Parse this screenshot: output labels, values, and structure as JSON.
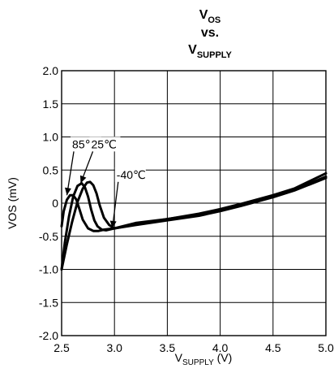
{
  "chart_data": {
    "type": "line",
    "title": {
      "line1_main": "V",
      "line1_sub": "OS",
      "line2": "vs.",
      "line3_main": "V",
      "line3_sub": "SUPPLY"
    },
    "xlabel": {
      "main": "V",
      "sub": "SUPPLY",
      "suffix": " (V)"
    },
    "ylabel": "VOS (mV)",
    "xlim": [
      2.5,
      5.0
    ],
    "ylim": [
      -2.0,
      2.0
    ],
    "x_ticks": [
      2.5,
      3.0,
      3.5,
      4.0,
      4.5,
      5.0
    ],
    "x_tick_labels": [
      "2.5",
      "3.0",
      "3.5",
      "4.0",
      "4.5",
      "5.0"
    ],
    "y_ticks": [
      -2.0,
      -1.5,
      -1.0,
      -0.5,
      0,
      0.5,
      1.0,
      1.5,
      2.0
    ],
    "y_tick_labels": [
      "-2.0",
      "-1.5",
      "-1.0",
      "-0.5",
      "0",
      "0.5",
      "1.0",
      "1.5",
      "2.0"
    ],
    "grid": true,
    "line_color": "#000000",
    "series": [
      {
        "name": "85℃",
        "x": [
          2.5,
          2.52,
          2.55,
          2.58,
          2.61,
          2.64,
          2.67,
          2.7,
          2.75,
          2.8,
          2.85,
          2.9,
          3.0,
          3.2,
          3.5,
          3.8,
          4.0,
          4.2,
          4.5,
          4.7,
          5.0
        ],
        "y": [
          -0.35,
          -0.12,
          0.05,
          0.12,
          0.12,
          0.05,
          -0.1,
          -0.25,
          -0.38,
          -0.42,
          -0.42,
          -0.4,
          -0.38,
          -0.32,
          -0.24,
          -0.16,
          -0.09,
          -0.01,
          0.12,
          0.22,
          0.45
        ]
      },
      {
        "name": "25℃",
        "x": [
          2.5,
          2.53,
          2.57,
          2.61,
          2.65,
          2.69,
          2.72,
          2.75,
          2.78,
          2.81,
          2.84,
          2.88,
          2.92,
          3.0,
          3.2,
          3.5,
          3.8,
          4.0,
          4.2,
          4.5,
          4.7,
          5.0
        ],
        "y": [
          -1.0,
          -0.6,
          -0.2,
          0.1,
          0.26,
          0.3,
          0.24,
          0.1,
          -0.1,
          -0.26,
          -0.35,
          -0.4,
          -0.41,
          -0.38,
          -0.3,
          -0.24,
          -0.17,
          -0.1,
          -0.02,
          0.11,
          0.2,
          0.4
        ]
      },
      {
        "name": "-40℃",
        "x": [
          2.5,
          2.55,
          2.6,
          2.65,
          2.7,
          2.74,
          2.77,
          2.8,
          2.83,
          2.86,
          2.9,
          2.95,
          3.0,
          3.2,
          3.5,
          3.8,
          4.0,
          4.2,
          4.5,
          4.7,
          5.0
        ],
        "y": [
          -1.0,
          -0.62,
          -0.28,
          0.02,
          0.22,
          0.31,
          0.32,
          0.27,
          0.15,
          -0.03,
          -0.22,
          -0.33,
          -0.38,
          -0.33,
          -0.26,
          -0.19,
          -0.12,
          -0.04,
          0.09,
          0.19,
          0.38
        ]
      }
    ],
    "annotations": [
      {
        "text": "85℃",
        "x": 2.6,
        "y": 0.83,
        "arrow_to": [
          2.55,
          0.12
        ]
      },
      {
        "text": "25℃",
        "x": 2.78,
        "y": 0.83,
        "arrow_to": [
          2.68,
          0.3
        ]
      },
      {
        "text": "-40℃",
        "x": 3.02,
        "y": 0.37,
        "arrow_to": [
          2.98,
          -0.38
        ]
      }
    ]
  }
}
